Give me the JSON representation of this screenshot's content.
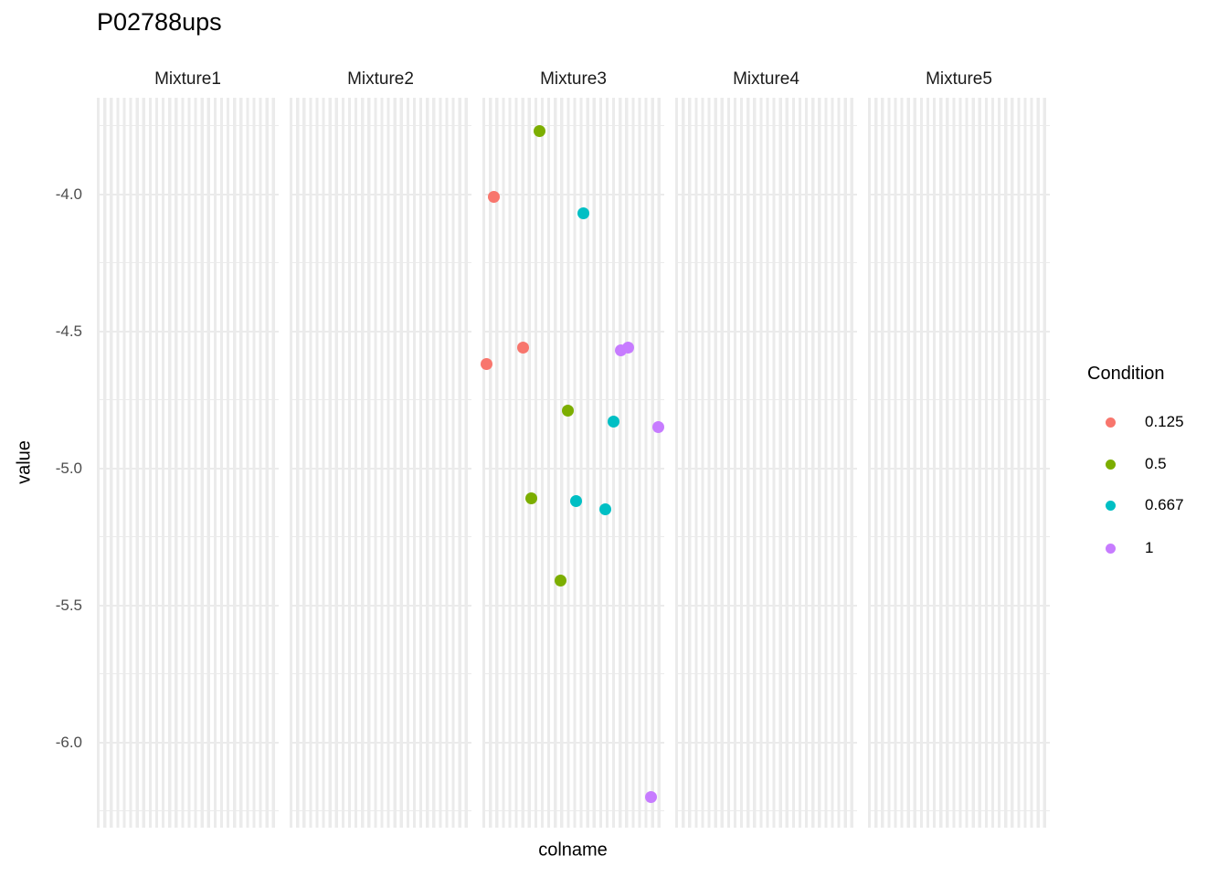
{
  "title": "P02788ups",
  "axes": {
    "x_title": "colname",
    "y_title": "value",
    "y_tick_labels": [
      "-4.0",
      "-4.5",
      "-5.0",
      "-5.5",
      "-6.0"
    ]
  },
  "facets": [
    "Mixture1",
    "Mixture2",
    "Mixture3",
    "Mixture4",
    "Mixture5"
  ],
  "legend": {
    "title": "Condition",
    "items": [
      {
        "label": "0.125",
        "color": "#F8766D"
      },
      {
        "label": "0.5",
        "color": "#7CAE00"
      },
      {
        "label": "0.667",
        "color": "#00BFC4"
      },
      {
        "label": "1",
        "color": "#C77CFF"
      }
    ]
  },
  "colors": {
    "gridline": "#EBEBEB",
    "axis_text": "#4D4D4D",
    "strip_text": "#1A1A1A"
  },
  "chart_data": {
    "type": "scatter",
    "title": "P02788ups",
    "xlabel": "colname",
    "ylabel": "value",
    "facet_levels": [
      "Mixture1",
      "Mixture2",
      "Mixture3",
      "Mixture4",
      "Mixture5"
    ],
    "x_unit": "fraction of facet panel width (x is categorical, tick labels not shown)",
    "y_ticks": [
      -4.0,
      -4.5,
      -5.0,
      -5.5,
      -6.0
    ],
    "ylim": [
      -6.31,
      -3.65
    ],
    "grid": "major and minor horizontal lines; dense vertical category stripes",
    "legend_position": "right",
    "legend_title": "Condition",
    "series": [
      {
        "name": "0.125",
        "color": "#F8766D",
        "facet": "Mixture3",
        "points": [
          {
            "x": 0.065,
            "y": -4.01
          },
          {
            "x": 0.226,
            "y": -4.56
          },
          {
            "x": 0.025,
            "y": -4.62
          }
        ]
      },
      {
        "name": "0.5",
        "color": "#7CAE00",
        "facet": "Mixture3",
        "points": [
          {
            "x": 0.312,
            "y": -3.77
          },
          {
            "x": 0.472,
            "y": -4.79
          },
          {
            "x": 0.271,
            "y": -5.11
          },
          {
            "x": 0.432,
            "y": -5.41
          }
        ]
      },
      {
        "name": "0.667",
        "color": "#00BFC4",
        "facet": "Mixture3",
        "points": [
          {
            "x": 0.553,
            "y": -4.07
          },
          {
            "x": 0.719,
            "y": -4.83
          },
          {
            "x": 0.513,
            "y": -5.12
          },
          {
            "x": 0.678,
            "y": -5.15
          }
        ]
      },
      {
        "name": "1",
        "color": "#C77CFF",
        "facet": "Mixture3",
        "points": [
          {
            "x": 0.759,
            "y": -4.57
          },
          {
            "x": 0.804,
            "y": -4.56
          },
          {
            "x": 0.965,
            "y": -4.85
          },
          {
            "x": 0.925,
            "y": -6.2
          }
        ]
      }
    ]
  }
}
